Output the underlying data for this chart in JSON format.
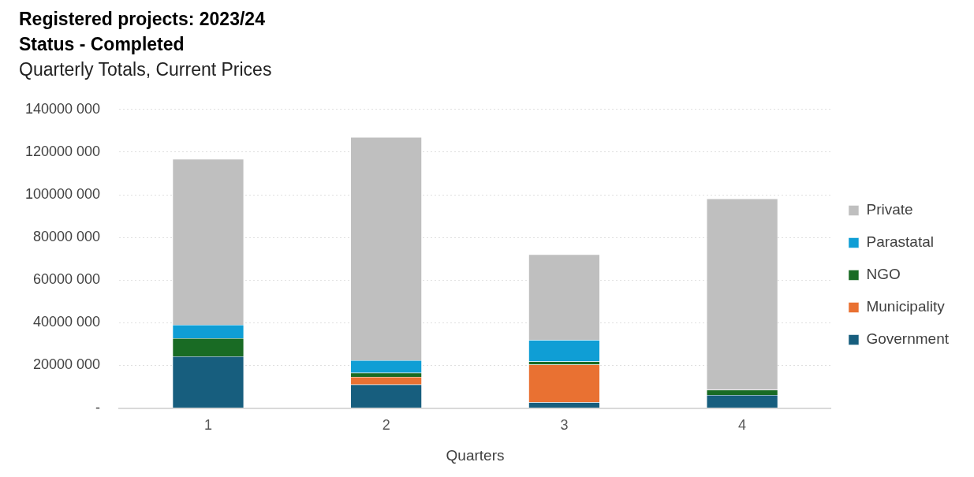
{
  "chart_data": {
    "type": "bar",
    "title": "Registered projects: 2023/24\nStatus - Completed",
    "subtitle": "Quarterly Totals, Current Prices",
    "xlabel": "Quarters",
    "categories": [
      "1",
      "2",
      "3",
      "4"
    ],
    "stacked": true,
    "legend": "right",
    "grid": "y",
    "ylim": [
      0,
      140000000
    ],
    "yticks": [
      {
        "value": 0,
        "label": "-"
      },
      {
        "value": 20000000,
        "label": "20000 000"
      },
      {
        "value": 40000000,
        "label": "40000 000"
      },
      {
        "value": 60000000,
        "label": "60000 000"
      },
      {
        "value": 80000000,
        "label": "80000 000"
      },
      {
        "value": 100000000,
        "label": "100000 000"
      },
      {
        "value": 120000000,
        "label": "120000 000"
      },
      {
        "value": 140000000,
        "label": "140000 000"
      }
    ],
    "series": [
      {
        "name": "Government",
        "color": "#175e7e",
        "values": [
          24200000,
          11000000,
          2700000,
          6100000
        ]
      },
      {
        "name": "Municipality",
        "color": "#e97132",
        "values": [
          0,
          3600000,
          17700000,
          0
        ]
      },
      {
        "name": "NGO",
        "color": "#196b24",
        "values": [
          8500000,
          2000000,
          1400000,
          2400000
        ]
      },
      {
        "name": "Parastatal",
        "color": "#0f9ed5",
        "values": [
          6300000,
          5800000,
          10100000,
          0
        ]
      },
      {
        "name": "Private",
        "color": "#bfbfbf",
        "values": [
          77700000,
          104600000,
          40100000,
          89700000
        ]
      }
    ]
  }
}
